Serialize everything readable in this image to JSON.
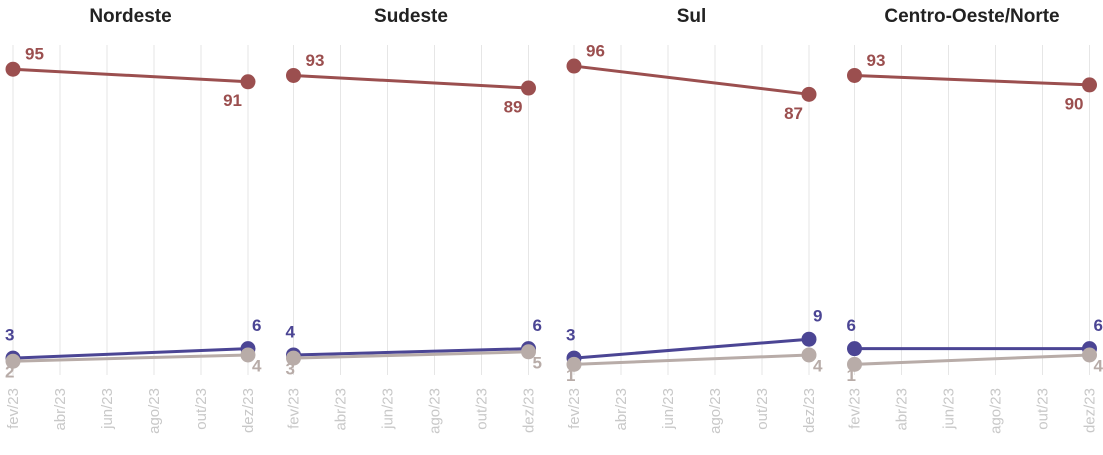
{
  "chart_data": [
    {
      "type": "line",
      "title": "Nordeste",
      "x": [
        "fev/23",
        "dez/23"
      ],
      "xticks": [
        "fev/23",
        "abr/23",
        "jun/23",
        "ago/23",
        "out/23",
        "dez/23"
      ],
      "ylim": [
        0,
        100
      ],
      "series": [
        {
          "color": "#9b4f4f",
          "values": [
            95,
            91
          ]
        },
        {
          "color": "#4b4594",
          "values": [
            3,
            6
          ]
        },
        {
          "color": "#b8aca8",
          "values": [
            2,
            4
          ]
        }
      ]
    },
    {
      "type": "line",
      "title": "Sudeste",
      "x": [
        "fev/23",
        "dez/23"
      ],
      "xticks": [
        "fev/23",
        "abr/23",
        "jun/23",
        "ago/23",
        "out/23",
        "dez/23"
      ],
      "ylim": [
        0,
        100
      ],
      "series": [
        {
          "color": "#9b4f4f",
          "values": [
            93,
            89
          ]
        },
        {
          "color": "#4b4594",
          "values": [
            4,
            6
          ]
        },
        {
          "color": "#b8aca8",
          "values": [
            3,
            5
          ]
        }
      ]
    },
    {
      "type": "line",
      "title": "Sul",
      "x": [
        "fev/23",
        "dez/23"
      ],
      "xticks": [
        "fev/23",
        "abr/23",
        "jun/23",
        "ago/23",
        "out/23",
        "dez/23"
      ],
      "ylim": [
        0,
        100
      ],
      "series": [
        {
          "color": "#9b4f4f",
          "values": [
            96,
            87
          ]
        },
        {
          "color": "#4b4594",
          "values": [
            3,
            9
          ]
        },
        {
          "color": "#b8aca8",
          "values": [
            1,
            4
          ]
        }
      ]
    },
    {
      "type": "line",
      "title": "Centro-Oeste/Norte",
      "x": [
        "fev/23",
        "dez/23"
      ],
      "xticks": [
        "fev/23",
        "abr/23",
        "jun/23",
        "ago/23",
        "out/23",
        "dez/23"
      ],
      "ylim": [
        0,
        100
      ],
      "series": [
        {
          "color": "#9b4f4f",
          "values": [
            93,
            90
          ]
        },
        {
          "color": "#4b4594",
          "values": [
            6,
            6
          ]
        },
        {
          "color": "#b8aca8",
          "values": [
            1,
            4
          ]
        }
      ]
    }
  ]
}
